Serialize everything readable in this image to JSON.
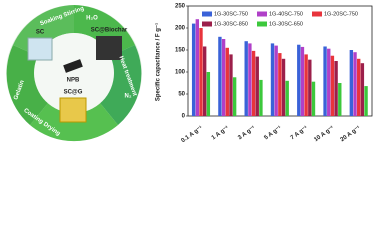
{
  "diagram": {
    "labels": [
      "SC",
      "SC@Biochar",
      "NPB",
      "SC@G",
      "H₂O",
      "N₂",
      "Heat treatment",
      "Soaking Stirring",
      "Gelatin",
      "Coating Drying"
    ]
  },
  "chart_data": {
    "type": "bar",
    "ylabel": "Specific capacitance / F g⁻¹",
    "categories": [
      "0.1 A g⁻¹",
      "1 A g⁻¹",
      "3 A g⁻¹",
      "5 A g⁻¹",
      "7 A g⁻¹",
      "10 A g⁻¹",
      "20 A g⁻¹"
    ],
    "series": [
      {
        "name": "1G-30SC-750",
        "color": "#3a62d8",
        "values": [
          210,
          180,
          170,
          165,
          162,
          158,
          150
        ]
      },
      {
        "name": "1G-40SC-750",
        "color": "#b040c8",
        "values": [
          220,
          175,
          165,
          160,
          157,
          153,
          145
        ]
      },
      {
        "name": "1G-20SC-750",
        "color": "#e8343c",
        "values": [
          200,
          155,
          148,
          143,
          140,
          137,
          130
        ]
      },
      {
        "name": "1G-30SC-850",
        "color": "#9c1f4a",
        "values": [
          158,
          140,
          135,
          130,
          128,
          125,
          120
        ]
      },
      {
        "name": "1G-30SC-650",
        "color": "#3cc83c",
        "values": [
          100,
          88,
          82,
          80,
          78,
          75,
          68
        ]
      }
    ],
    "ylim": [
      0,
      250
    ],
    "yticks": [
      0,
      50,
      100,
      150,
      200,
      250
    ],
    "legend": "top"
  }
}
